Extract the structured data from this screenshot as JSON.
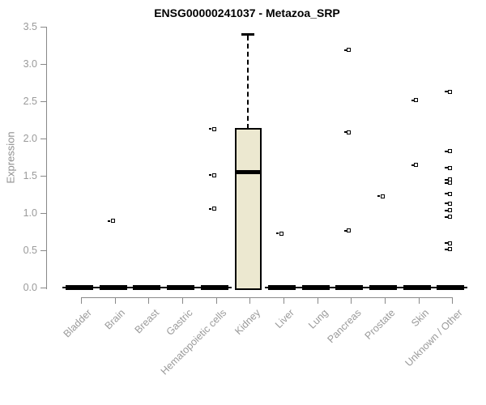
{
  "title": "ENSG00000241037 - Metazoa_SRP",
  "chart_data": {
    "type": "boxplot",
    "title": "ENSG00000241037 - Metazoa_SRP",
    "ylabel": "Expression",
    "xlabel": "",
    "ylim": [
      0,
      3.5
    ],
    "yticks": [
      0.0,
      0.5,
      1.0,
      1.5,
      2.0,
      2.5,
      3.0,
      3.5
    ],
    "ytick_labels": [
      "0.0",
      "0.5",
      "1.0",
      "1.5",
      "2.0",
      "2.5",
      "3.0",
      "3.5"
    ],
    "grid": false,
    "legend": false,
    "categories": [
      "Bladder",
      "Brain",
      "Breast",
      "Gastric",
      "Hematopoietic cells",
      "Kidney",
      "Liver",
      "Lung",
      "Pancreas",
      "Prostate",
      "Skin",
      "Unknown / Other"
    ],
    "boxes": [
      {
        "category": "Bladder",
        "collapsed": true,
        "median": 0.0,
        "q1": 0.0,
        "q3": 0.0,
        "whisker_low": 0.0,
        "whisker_high": 0.0
      },
      {
        "category": "Brain",
        "collapsed": true,
        "median": 0.0,
        "q1": 0.0,
        "q3": 0.0,
        "whisker_low": 0.0,
        "whisker_high": 0.0
      },
      {
        "category": "Breast",
        "collapsed": true,
        "median": 0.0,
        "q1": 0.0,
        "q3": 0.0,
        "whisker_low": 0.0,
        "whisker_high": 0.0
      },
      {
        "category": "Gastric",
        "collapsed": true,
        "median": 0.0,
        "q1": 0.0,
        "q3": 0.0,
        "whisker_low": 0.0,
        "whisker_high": 0.0
      },
      {
        "category": "Hematopoietic cells",
        "collapsed": true,
        "median": 0.0,
        "q1": 0.0,
        "q3": 0.0,
        "whisker_low": 0.0,
        "whisker_high": 0.0
      },
      {
        "category": "Kidney",
        "collapsed": false,
        "median": 1.55,
        "q1": 0.0,
        "q3": 2.13,
        "whisker_low": 0.0,
        "whisker_high": 3.4
      },
      {
        "category": "Liver",
        "collapsed": true,
        "median": 0.0,
        "q1": 0.0,
        "q3": 0.0,
        "whisker_low": 0.0,
        "whisker_high": 0.0
      },
      {
        "category": "Lung",
        "collapsed": true,
        "median": 0.0,
        "q1": 0.0,
        "q3": 0.0,
        "whisker_low": 0.0,
        "whisker_high": 0.0
      },
      {
        "category": "Pancreas",
        "collapsed": true,
        "median": 0.0,
        "q1": 0.0,
        "q3": 0.0,
        "whisker_low": 0.0,
        "whisker_high": 0.0
      },
      {
        "category": "Prostate",
        "collapsed": true,
        "median": 0.0,
        "q1": 0.0,
        "q3": 0.0,
        "whisker_low": 0.0,
        "whisker_high": 0.0
      },
      {
        "category": "Skin",
        "collapsed": true,
        "median": 0.0,
        "q1": 0.0,
        "q3": 0.0,
        "whisker_low": 0.0,
        "whisker_high": 0.0
      },
      {
        "category": "Unknown / Other",
        "collapsed": true,
        "median": 0.0,
        "q1": 0.0,
        "q3": 0.0,
        "whisker_low": 0.0,
        "whisker_high": 0.0
      }
    ],
    "outliers": [
      {
        "category": "Brain",
        "values": [
          0.89
        ]
      },
      {
        "category": "Hematopoietic cells",
        "values": [
          2.12,
          1.5,
          1.05
        ]
      },
      {
        "category": "Liver",
        "values": [
          0.72
        ]
      },
      {
        "category": "Pancreas",
        "values": [
          3.18,
          2.08,
          0.76
        ]
      },
      {
        "category": "Prostate",
        "values": [
          1.22
        ]
      },
      {
        "category": "Skin",
        "values": [
          2.51,
          1.64
        ]
      },
      {
        "category": "Unknown / Other",
        "values": [
          2.62,
          1.82,
          1.6,
          1.44,
          1.4,
          1.25,
          1.12,
          1.03,
          0.94,
          0.59,
          0.51
        ]
      }
    ],
    "colors": {
      "box_fill": "#ece8d0",
      "box_border": "#000000",
      "median": "#000000",
      "outlier": "#000000",
      "axis": "#898989",
      "tick_label": "#9a9a9a",
      "title": "#000000"
    }
  }
}
